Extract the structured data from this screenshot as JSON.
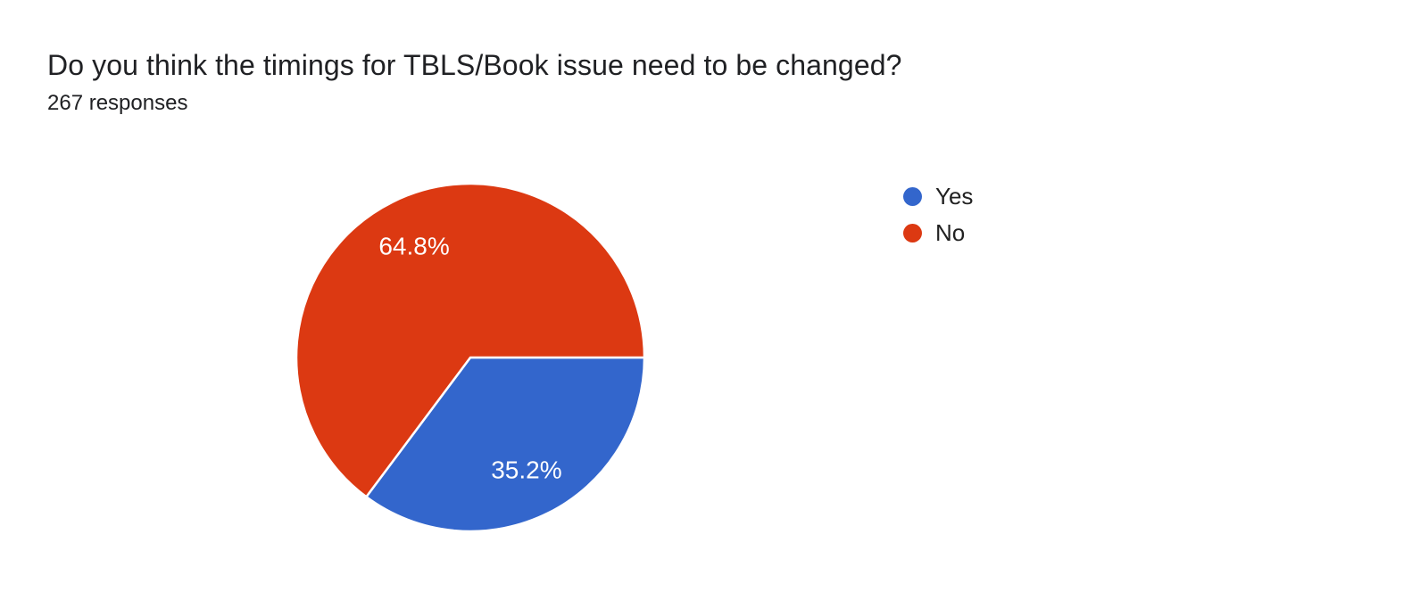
{
  "header": {
    "title": "Do you think the timings for TBLS/Book issue need to be changed?",
    "responses_count": "267 responses"
  },
  "chart_data": {
    "type": "pie",
    "title": "Do you think the timings for TBLS/Book issue need to be changed?",
    "subtitle": "267 responses",
    "categories": [
      "Yes",
      "No"
    ],
    "values": [
      35.2,
      64.8
    ],
    "labels": [
      "35.2%",
      "64.8%"
    ],
    "colors": [
      "#3366CC",
      "#DC3912"
    ],
    "slice_label_color": "#FFFFFF",
    "slice_border_color": "#FFFFFF",
    "start_angle_deg_clockwise_from_east": 0,
    "legend_position": "right",
    "legend_entries": [
      "Yes",
      "No"
    ]
  }
}
